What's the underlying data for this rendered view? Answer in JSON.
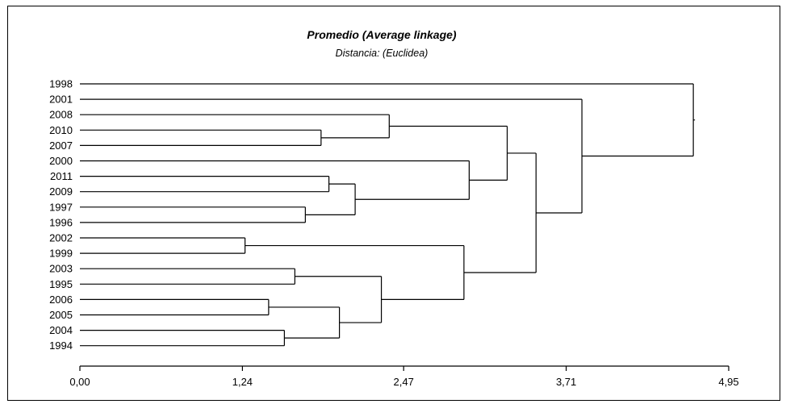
{
  "chart_data": {
    "type": "dendrogram",
    "title": "Promedio (Average linkage)",
    "subtitle": "Distancia: (Euclidea)",
    "xlim": [
      0,
      4.95
    ],
    "x_ticks": [
      {
        "value": 0.0,
        "label": "0,00"
      },
      {
        "value": 1.24,
        "label": "1,24"
      },
      {
        "value": 2.47,
        "label": "2,47"
      },
      {
        "value": 3.71,
        "label": "3,71"
      },
      {
        "value": 4.95,
        "label": "4,95"
      }
    ],
    "leaves": [
      "1998",
      "2001",
      "2008",
      "2010",
      "2007",
      "2000",
      "2011",
      "2009",
      "1997",
      "1996",
      "2002",
      "1999",
      "2003",
      "1995",
      "2006",
      "2005",
      "2004",
      "1994"
    ],
    "merges": [
      {
        "id": "m1",
        "children": [
          "2010",
          "2007"
        ],
        "height": 1.84
      },
      {
        "id": "m2",
        "children": [
          "2008",
          "m1"
        ],
        "height": 2.36
      },
      {
        "id": "m3",
        "children": [
          "2011",
          "2009"
        ],
        "height": 1.9
      },
      {
        "id": "m4",
        "children": [
          "1997",
          "1996"
        ],
        "height": 1.72
      },
      {
        "id": "m5",
        "children": [
          "m3",
          "m4"
        ],
        "height": 2.1
      },
      {
        "id": "m6",
        "children": [
          "2000",
          "m5"
        ],
        "height": 2.97
      },
      {
        "id": "m7",
        "children": [
          "m2",
          "m6"
        ],
        "height": 3.26
      },
      {
        "id": "m8",
        "children": [
          "2002",
          "1999"
        ],
        "height": 1.26
      },
      {
        "id": "m9",
        "children": [
          "2003",
          "1995"
        ],
        "height": 1.64
      },
      {
        "id": "m10",
        "children": [
          "2006",
          "2005"
        ],
        "height": 1.44
      },
      {
        "id": "m11",
        "children": [
          "2004",
          "1994"
        ],
        "height": 1.56
      },
      {
        "id": "m12",
        "children": [
          "m10",
          "m11"
        ],
        "height": 1.98
      },
      {
        "id": "m13",
        "children": [
          "m9",
          "m12"
        ],
        "height": 2.3
      },
      {
        "id": "m14",
        "children": [
          "m8",
          "m13"
        ],
        "height": 2.93
      },
      {
        "id": "m15",
        "children": [
          "m7",
          "m14"
        ],
        "height": 3.48
      },
      {
        "id": "m16",
        "children": [
          "2001",
          "m15"
        ],
        "height": 3.83
      },
      {
        "id": "m17",
        "children": [
          "1998",
          "m16"
        ],
        "height": 4.68
      }
    ],
    "grid": false,
    "legend": "none"
  }
}
